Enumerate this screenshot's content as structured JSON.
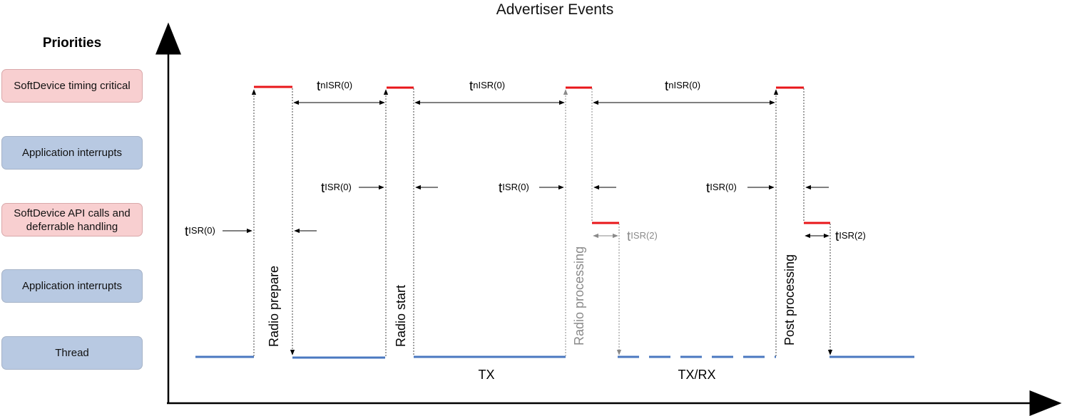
{
  "title": "Advertiser Events",
  "priorities_header": "Priorities",
  "priorities": [
    {
      "label": "SoftDevice timing critical",
      "color": "#f8cfd0"
    },
    {
      "label": "Application interrupts",
      "color": "#b8c9e2"
    },
    {
      "label": "SoftDevice API calls and deferrable handling",
      "color": "#f8cfd0"
    },
    {
      "label": "Application interrupts",
      "color": "#b8c9e2"
    },
    {
      "label": "Thread",
      "color": "#b8c9e2"
    }
  ],
  "events": {
    "radio_prepare": "Radio prepare",
    "radio_start": "Radio start",
    "radio_processing": "Radio processing",
    "post_processing": "Post processing"
  },
  "timing": {
    "t": "t",
    "nisr0": "nISR(0)",
    "isr0": "ISR(0)",
    "isr2": "ISR(2)"
  },
  "phases": {
    "tx": "TX",
    "txrx": "TX/RX"
  },
  "colors": {
    "critical_level": "#e8161a",
    "thread_level": "#4a78c0",
    "dim": "#8a8a8a"
  }
}
